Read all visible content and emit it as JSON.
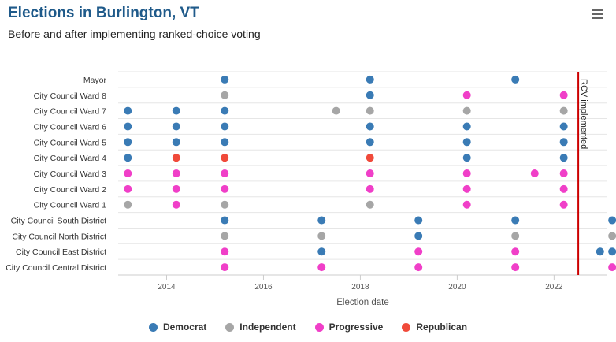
{
  "header": {
    "title": "Elections in Burlington, VT",
    "subtitle": "Before and after implementing ranked-choice voting"
  },
  "menu_icon": "hamburger-menu-icon",
  "colors": {
    "Democrat": "#3a7bb5",
    "Independent": "#a6a6a6",
    "Progressive": "#f03fc8",
    "Republican": "#f04a3a",
    "rcv_line": "#cc0000",
    "grid": "#e6e6e6"
  },
  "chart_data": {
    "type": "scatter",
    "xlabel": "Election date",
    "xlim": [
      2013.0,
      2023.1
    ],
    "xticks": [
      2014,
      2016,
      2018,
      2020,
      2022
    ],
    "categories": [
      "Mayor",
      "City Council Ward 8",
      "City Council Ward 7",
      "City Council Ward 6",
      "City Council Ward 5",
      "City Council Ward 4",
      "City Council Ward 3",
      "City Council Ward 2",
      "City Council Ward 1",
      "City Council South District",
      "City Council North District",
      "City Council East District",
      "City Council Central District"
    ],
    "legend": [
      "Democrat",
      "Independent",
      "Progressive",
      "Republican"
    ],
    "legend_position": "bottom",
    "annotation": {
      "label": "RCV implemented",
      "x": 2022.5
    },
    "points": [
      {
        "row": "Mayor",
        "x": 2015.2,
        "party": "Democrat"
      },
      {
        "row": "Mayor",
        "x": 2018.2,
        "party": "Democrat"
      },
      {
        "row": "Mayor",
        "x": 2021.2,
        "party": "Democrat"
      },
      {
        "row": "City Council Ward 8",
        "x": 2015.2,
        "party": "Independent"
      },
      {
        "row": "City Council Ward 8",
        "x": 2018.2,
        "party": "Democrat"
      },
      {
        "row": "City Council Ward 8",
        "x": 2020.2,
        "party": "Progressive"
      },
      {
        "row": "City Council Ward 8",
        "x": 2022.2,
        "party": "Progressive"
      },
      {
        "row": "City Council Ward 7",
        "x": 2013.2,
        "party": "Democrat"
      },
      {
        "row": "City Council Ward 7",
        "x": 2014.2,
        "party": "Democrat"
      },
      {
        "row": "City Council Ward 7",
        "x": 2015.2,
        "party": "Democrat"
      },
      {
        "row": "City Council Ward 7",
        "x": 2017.5,
        "party": "Independent"
      },
      {
        "row": "City Council Ward 7",
        "x": 2018.2,
        "party": "Independent"
      },
      {
        "row": "City Council Ward 7",
        "x": 2020.2,
        "party": "Independent"
      },
      {
        "row": "City Council Ward 7",
        "x": 2022.2,
        "party": "Independent"
      },
      {
        "row": "City Council Ward 6",
        "x": 2013.2,
        "party": "Democrat"
      },
      {
        "row": "City Council Ward 6",
        "x": 2014.2,
        "party": "Democrat"
      },
      {
        "row": "City Council Ward 6",
        "x": 2015.2,
        "party": "Democrat"
      },
      {
        "row": "City Council Ward 6",
        "x": 2018.2,
        "party": "Democrat"
      },
      {
        "row": "City Council Ward 6",
        "x": 2020.2,
        "party": "Democrat"
      },
      {
        "row": "City Council Ward 6",
        "x": 2022.2,
        "party": "Democrat"
      },
      {
        "row": "City Council Ward 5",
        "x": 2013.2,
        "party": "Democrat"
      },
      {
        "row": "City Council Ward 5",
        "x": 2014.2,
        "party": "Democrat"
      },
      {
        "row": "City Council Ward 5",
        "x": 2015.2,
        "party": "Democrat"
      },
      {
        "row": "City Council Ward 5",
        "x": 2018.2,
        "party": "Democrat"
      },
      {
        "row": "City Council Ward 5",
        "x": 2020.2,
        "party": "Democrat"
      },
      {
        "row": "City Council Ward 5",
        "x": 2022.2,
        "party": "Democrat"
      },
      {
        "row": "City Council Ward 4",
        "x": 2013.2,
        "party": "Democrat"
      },
      {
        "row": "City Council Ward 4",
        "x": 2014.2,
        "party": "Republican"
      },
      {
        "row": "City Council Ward 4",
        "x": 2015.2,
        "party": "Republican"
      },
      {
        "row": "City Council Ward 4",
        "x": 2018.2,
        "party": "Republican"
      },
      {
        "row": "City Council Ward 4",
        "x": 2020.2,
        "party": "Democrat"
      },
      {
        "row": "City Council Ward 4",
        "x": 2022.2,
        "party": "Democrat"
      },
      {
        "row": "City Council Ward 3",
        "x": 2013.2,
        "party": "Progressive"
      },
      {
        "row": "City Council Ward 3",
        "x": 2014.2,
        "party": "Progressive"
      },
      {
        "row": "City Council Ward 3",
        "x": 2015.2,
        "party": "Progressive"
      },
      {
        "row": "City Council Ward 3",
        "x": 2018.2,
        "party": "Progressive"
      },
      {
        "row": "City Council Ward 3",
        "x": 2020.2,
        "party": "Progressive"
      },
      {
        "row": "City Council Ward 3",
        "x": 2021.6,
        "party": "Progressive"
      },
      {
        "row": "City Council Ward 3",
        "x": 2022.2,
        "party": "Progressive"
      },
      {
        "row": "City Council Ward 2",
        "x": 2013.2,
        "party": "Progressive"
      },
      {
        "row": "City Council Ward 2",
        "x": 2014.2,
        "party": "Progressive"
      },
      {
        "row": "City Council Ward 2",
        "x": 2015.2,
        "party": "Progressive"
      },
      {
        "row": "City Council Ward 2",
        "x": 2018.2,
        "party": "Progressive"
      },
      {
        "row": "City Council Ward 2",
        "x": 2020.2,
        "party": "Progressive"
      },
      {
        "row": "City Council Ward 2",
        "x": 2022.2,
        "party": "Progressive"
      },
      {
        "row": "City Council Ward 1",
        "x": 2013.2,
        "party": "Independent"
      },
      {
        "row": "City Council Ward 1",
        "x": 2014.2,
        "party": "Progressive"
      },
      {
        "row": "City Council Ward 1",
        "x": 2015.2,
        "party": "Independent"
      },
      {
        "row": "City Council Ward 1",
        "x": 2018.2,
        "party": "Independent"
      },
      {
        "row": "City Council Ward 1",
        "x": 2020.2,
        "party": "Progressive"
      },
      {
        "row": "City Council Ward 1",
        "x": 2022.2,
        "party": "Progressive"
      },
      {
        "row": "City Council South District",
        "x": 2015.2,
        "party": "Democrat"
      },
      {
        "row": "City Council South District",
        "x": 2017.2,
        "party": "Democrat"
      },
      {
        "row": "City Council South District",
        "x": 2019.2,
        "party": "Democrat"
      },
      {
        "row": "City Council South District",
        "x": 2021.2,
        "party": "Democrat"
      },
      {
        "row": "City Council South District",
        "x": 2023.2,
        "party": "Democrat"
      },
      {
        "row": "City Council North District",
        "x": 2015.2,
        "party": "Independent"
      },
      {
        "row": "City Council North District",
        "x": 2017.2,
        "party": "Independent"
      },
      {
        "row": "City Council North District",
        "x": 2019.2,
        "party": "Democrat"
      },
      {
        "row": "City Council North District",
        "x": 2021.2,
        "party": "Independent"
      },
      {
        "row": "City Council North District",
        "x": 2023.2,
        "party": "Independent"
      },
      {
        "row": "City Council East District",
        "x": 2015.2,
        "party": "Progressive"
      },
      {
        "row": "City Council East District",
        "x": 2017.2,
        "party": "Democrat"
      },
      {
        "row": "City Council East District",
        "x": 2019.2,
        "party": "Progressive"
      },
      {
        "row": "City Council East District",
        "x": 2021.2,
        "party": "Progressive"
      },
      {
        "row": "City Council East District",
        "x": 2022.95,
        "party": "Democrat"
      },
      {
        "row": "City Council East District",
        "x": 2023.2,
        "party": "Democrat"
      },
      {
        "row": "City Council Central District",
        "x": 2015.2,
        "party": "Progressive"
      },
      {
        "row": "City Council Central District",
        "x": 2017.2,
        "party": "Progressive"
      },
      {
        "row": "City Council Central District",
        "x": 2019.2,
        "party": "Progressive"
      },
      {
        "row": "City Council Central District",
        "x": 2021.2,
        "party": "Progressive"
      },
      {
        "row": "City Council Central District",
        "x": 2023.2,
        "party": "Progressive"
      }
    ]
  }
}
